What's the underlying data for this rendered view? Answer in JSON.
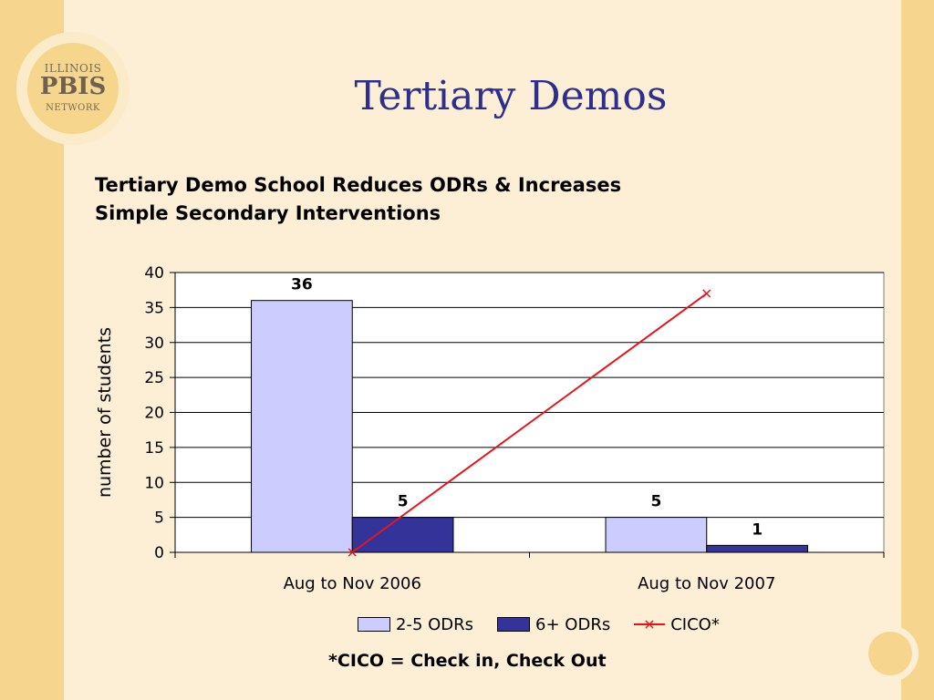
{
  "slide": {
    "title": "Tertiary Demos",
    "logo": {
      "line1": "ILLINOIS",
      "line2": "PBIS",
      "line3": "NETWORK"
    },
    "footnote": "*CICO = Check in, Check Out"
  },
  "colors": {
    "background": "#FCEFD6",
    "band": "#F6D68E",
    "title": "#2E2E8F",
    "series_light": "#CCCCFF",
    "series_dark": "#333399",
    "cico_line": "#E8141B"
  },
  "chart_data": {
    "type": "bar",
    "title_lines": [
      "Tertiary Demo School Reduces ODRs & Increases",
      "Simple Secondary Interventions"
    ],
    "xlabel": "",
    "ylabel": "number of students",
    "categories": [
      "Aug to Nov 2006",
      "Aug to Nov 2007"
    ],
    "ylim": [
      0,
      40
    ],
    "yticks": [
      0,
      5,
      10,
      15,
      20,
      25,
      30,
      35,
      40
    ],
    "grid": true,
    "legend_position": "bottom",
    "series": [
      {
        "name": "2-5 ODRs",
        "type": "bar",
        "values": [
          36,
          5
        ],
        "labels": [
          "36",
          "5"
        ],
        "color": "#CCCCFF"
      },
      {
        "name": "6+ ODRs",
        "type": "bar",
        "values": [
          5,
          1
        ],
        "labels": [
          "5",
          "1"
        ],
        "color": "#333399"
      },
      {
        "name": "CICO*",
        "type": "line",
        "marker": "x",
        "values": [
          0,
          37
        ],
        "color": "#E8141B"
      }
    ]
  }
}
